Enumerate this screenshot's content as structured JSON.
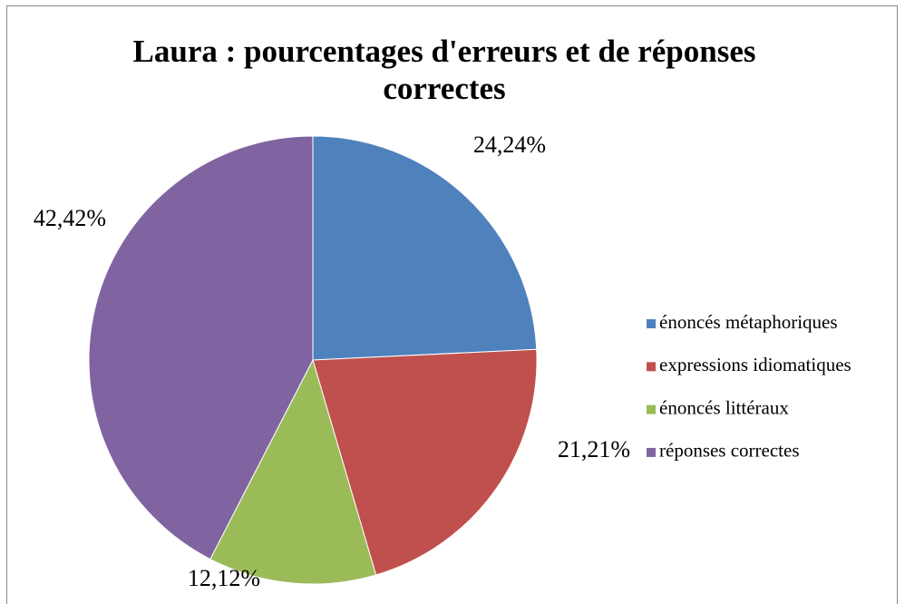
{
  "chart_data": {
    "type": "pie",
    "title": "Laura : pourcentages d'erreurs et de réponses correctes",
    "categories": [
      "énoncés métaphoriques",
      "expressions idiomatiques",
      "énoncés littéraux",
      "réponses correctes"
    ],
    "values": [
      24.24,
      21.21,
      12.12,
      42.42
    ],
    "value_labels": [
      "24,24%",
      "21,21%",
      "12,12%",
      "42,42%"
    ],
    "colors": [
      "#4f81bd",
      "#c0504d",
      "#9bbb59",
      "#8064a2"
    ],
    "legend": "right"
  }
}
